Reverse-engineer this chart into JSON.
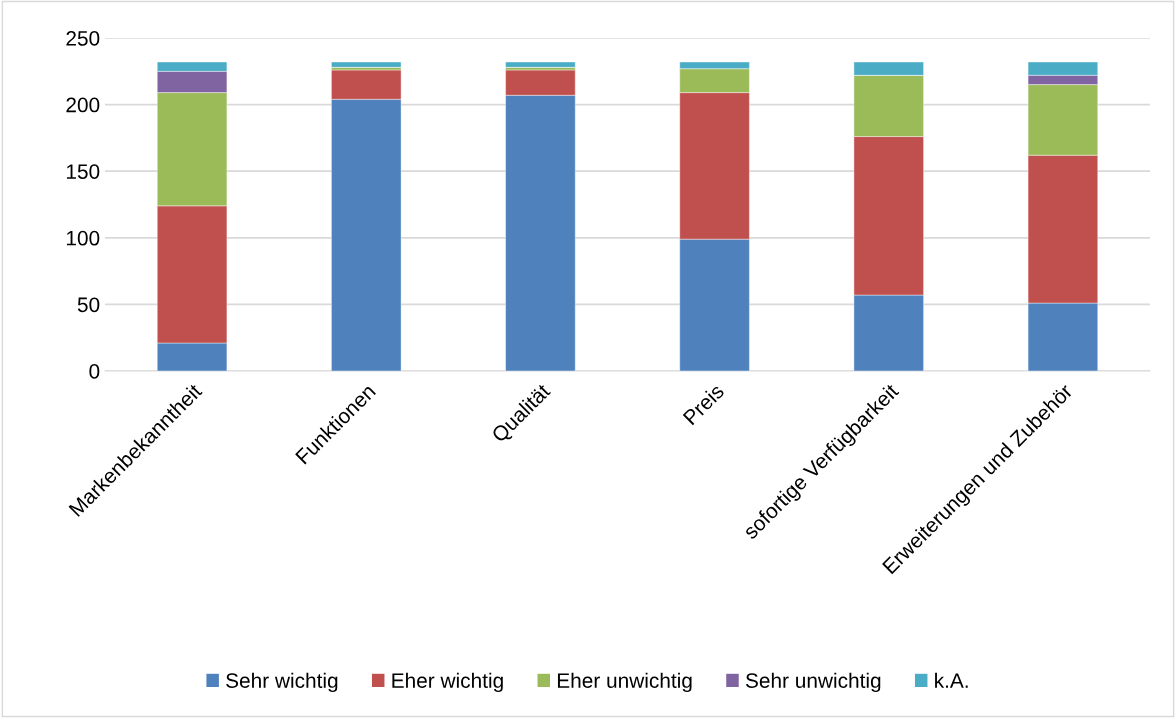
{
  "chart_data": {
    "type": "bar",
    "stacked": true,
    "categories": [
      "Markenbekanntheit",
      "Funktionen",
      "Qualität",
      "Preis",
      "sofortige Verfügbarkeit",
      "Erweiterungen und Zubehör"
    ],
    "series": [
      {
        "name": "Sehr wichtig",
        "color": "#4f81bd",
        "values": [
          21,
          204,
          207,
          99,
          57,
          51
        ]
      },
      {
        "name": "Eher wichtig",
        "color": "#c0504d",
        "values": [
          103,
          22,
          19,
          110,
          119,
          111
        ]
      },
      {
        "name": "Eher unwichtig",
        "color": "#9bbb59",
        "values": [
          85,
          2,
          2,
          18,
          46,
          53
        ]
      },
      {
        "name": "Sehr unwichtig",
        "color": "#8064a2",
        "values": [
          16,
          0,
          0,
          0,
          0,
          7
        ]
      },
      {
        "name": "k.A.",
        "color": "#4bacc6",
        "values": [
          7,
          4,
          4,
          5,
          10,
          10
        ]
      }
    ],
    "ylim": [
      0,
      250
    ],
    "yticks": [
      0,
      50,
      100,
      150,
      200,
      250
    ],
    "grid": "y",
    "legend": "bottom"
  }
}
